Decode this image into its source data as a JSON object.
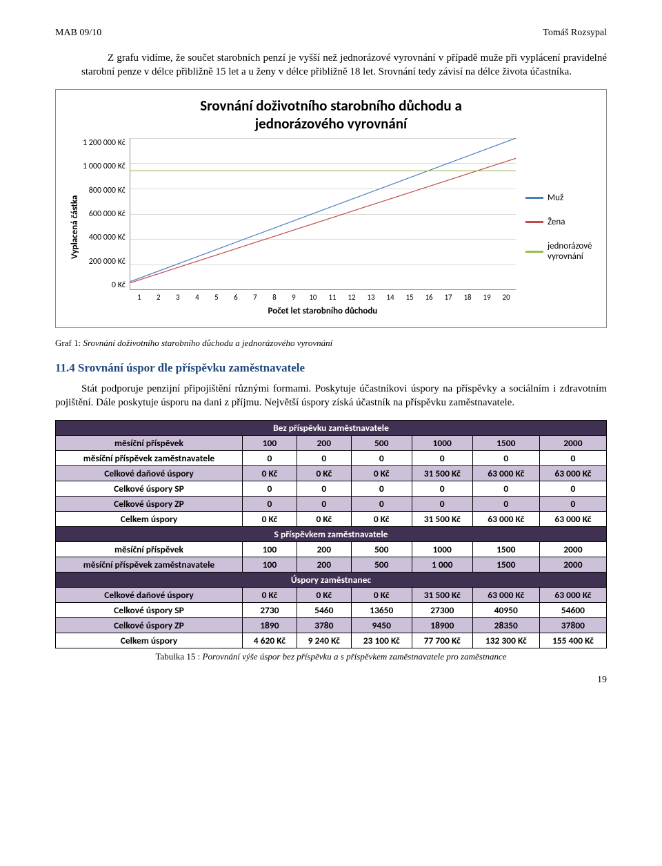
{
  "header": {
    "left": "MAB 09/10",
    "right": "Tomáš Rozsypal"
  },
  "para1": "Z grafu vidíme, že součet starobních penzí je vyšší než jednorázové vyrovnání v případě muže při vyplácení pravidelné starobní penze v délce přibližně 15 let a u ženy v délce přibližně 18 let. Srovnání tedy závisí na délce života účastníka.",
  "chart": {
    "title_l1": "Srovnání doživotního starobního důchodu a",
    "title_l2": "jednorázového vyrovnání",
    "y_label": "Vyplacená částka",
    "x_label": "Počet let starobního důchodu",
    "y_max": 1200000,
    "y_ticks": [
      "1 200 000 Kč",
      "1 000 000 Kč",
      "800 000 Kč",
      "600 000 Kč",
      "400 000 Kč",
      "200 000 Kč",
      "0 Kč"
    ],
    "x_ticks": [
      "1",
      "2",
      "3",
      "4",
      "5",
      "6",
      "7",
      "8",
      "9",
      "10",
      "11",
      "12",
      "13",
      "14",
      "15",
      "16",
      "17",
      "18",
      "19",
      "20"
    ],
    "series": [
      {
        "name": "Muž",
        "color": "#4a7ebb",
        "y1": 62000,
        "y20": 1240000
      },
      {
        "name": "Žena",
        "color": "#be4b48",
        "y1": 52000,
        "y20": 1040000
      },
      {
        "name": "jednorázové vyrovnání",
        "color": "#98b954",
        "y1": 940000,
        "y20": 940000
      }
    ]
  },
  "caption1_prefix": "Graf 1: ",
  "caption1_italic": "Srovnání doživotního starobního důchodu a jednorázového vyrovnání",
  "h2": "11.4 Srovnání úspor dle příspěvku zaměstnavatele",
  "para2": "Stát podporuje penzijní připojištění různými formami. Poskytuje účastníkovi úspory na příspěvky a sociálním i zdravotním pojištění. Dále poskytuje úsporu na dani z příjmu. Největší úspory získá účastník na příspěvku zaměstnavatele.",
  "table": {
    "sec1": "Bez příspěvku zaměstnavatele",
    "sec2": "S příspěvkem zaměstnavatele",
    "sec3": "Úspory zaměstnanec",
    "r1": {
      "label": "měsíční příspěvek",
      "c": [
        "100",
        "200",
        "500",
        "1000",
        "1500",
        "2000"
      ]
    },
    "r2": {
      "label": "měsíční příspěvek zaměstnavatele",
      "c": [
        "0",
        "0",
        "0",
        "0",
        "0",
        "0"
      ]
    },
    "r3": {
      "label": "Celkové daňové úspory",
      "c": [
        "0 Kč",
        "0 Kč",
        "0 Kč",
        "31 500 Kč",
        "63 000 Kč",
        "63 000 Kč"
      ]
    },
    "r4": {
      "label": "Celkové úspory SP",
      "c": [
        "0",
        "0",
        "0",
        "0",
        "0",
        "0"
      ]
    },
    "r5": {
      "label": "Celkové úspory ZP",
      "c": [
        "0",
        "0",
        "0",
        "0",
        "0",
        "0"
      ]
    },
    "r6": {
      "label": "Celkem úspory",
      "c": [
        "0 Kč",
        "0 Kč",
        "0 Kč",
        "31 500 Kč",
        "63 000 Kč",
        "63 000 Kč"
      ]
    },
    "r7": {
      "label": "měsíční příspěvek",
      "c": [
        "100",
        "200",
        "500",
        "1000",
        "1500",
        "2000"
      ]
    },
    "r8": {
      "label": "měsíční příspěvek zaměstnavatele",
      "c": [
        "100",
        "200",
        "500",
        "1 000",
        "1500",
        "2000"
      ]
    },
    "r9": {
      "label": "Celkové daňové úspory",
      "c": [
        "0 Kč",
        "0 Kč",
        "0 Kč",
        "31 500 Kč",
        "63 000 Kč",
        "63 000 Kč"
      ]
    },
    "r10": {
      "label": "Celkové úspory SP",
      "c": [
        "2730",
        "5460",
        "13650",
        "27300",
        "40950",
        "54600"
      ]
    },
    "r11": {
      "label": "Celkové úspory ZP",
      "c": [
        "1890",
        "3780",
        "9450",
        "18900",
        "28350",
        "37800"
      ]
    },
    "r12": {
      "label": "Celkem úspory",
      "c": [
        "4 620 Kč",
        "9 240 Kč",
        "23 100 Kč",
        "77 700 Kč",
        "132 300 Kč",
        "155 400 Kč"
      ]
    }
  },
  "caption2_prefix": "Tabulka 15 : ",
  "caption2_italic": "Porovnání výše úspor bez příspěvku a s příspěvkem zaměstnavatele pro zaměstnance",
  "page": "19"
}
